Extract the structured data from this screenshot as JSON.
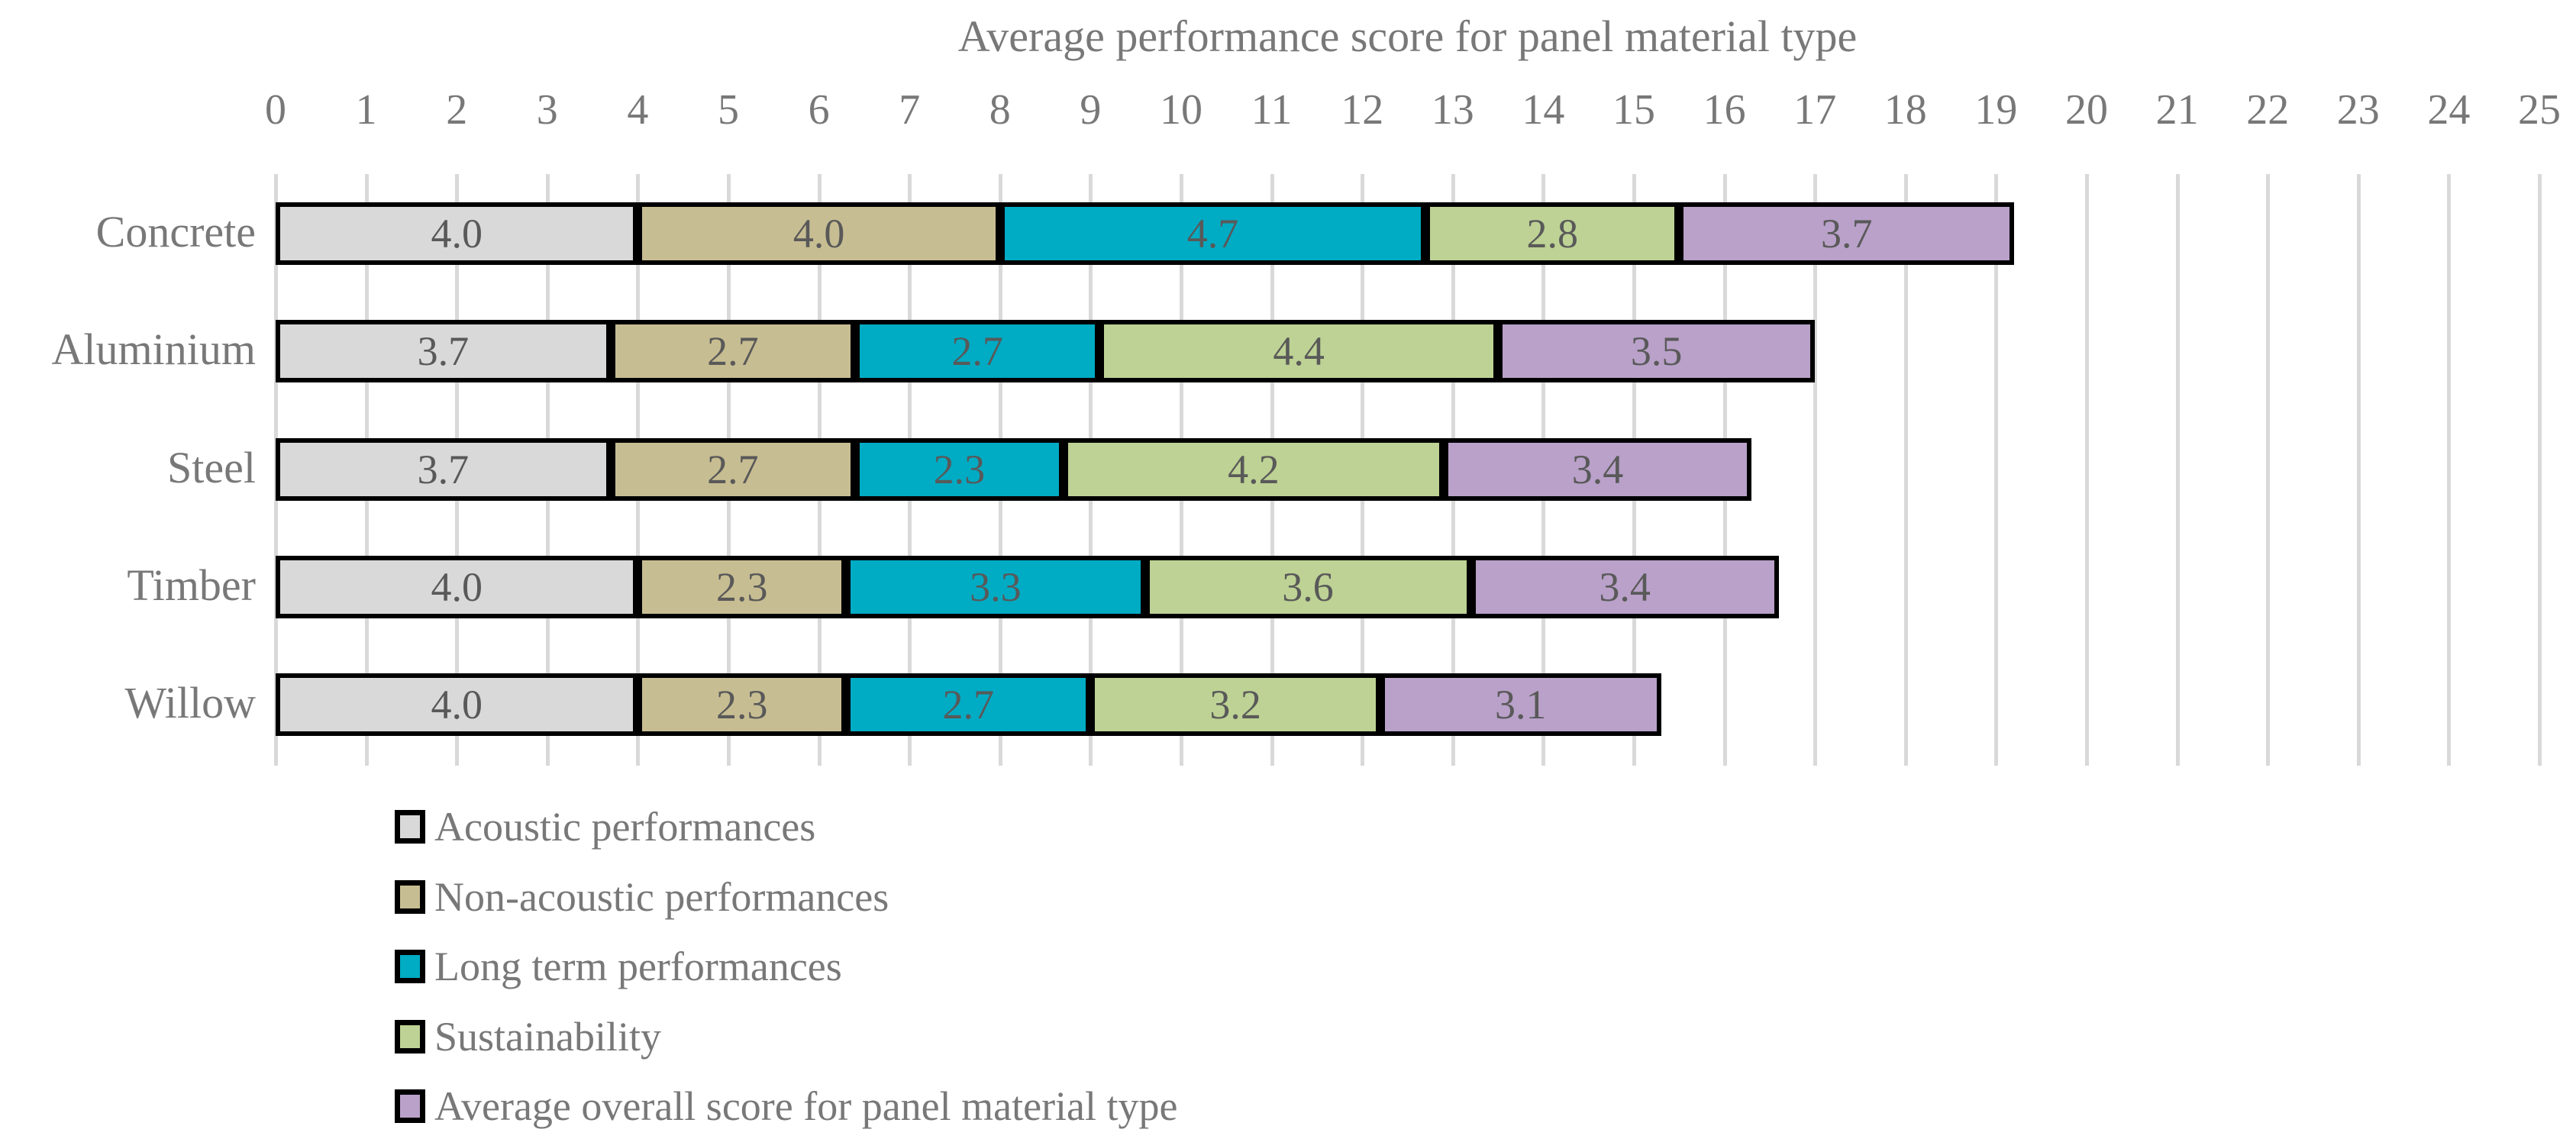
{
  "chart_data": {
    "type": "bar",
    "orientation": "horizontal",
    "stacked": true,
    "title": "Average performance score for panel material type",
    "xlabel": "",
    "ylabel": "",
    "xlim": [
      0,
      25
    ],
    "x_ticks": [
      0,
      1,
      2,
      3,
      4,
      5,
      6,
      7,
      8,
      9,
      10,
      11,
      12,
      13,
      14,
      15,
      16,
      17,
      18,
      19,
      20,
      21,
      22,
      23,
      24,
      25
    ],
    "grid": true,
    "legend_position": "bottom-left",
    "data_labels_shown": true,
    "categories": [
      "Concrete",
      "Aluminium",
      "Steel",
      "Timber",
      "Willow"
    ],
    "series": [
      {
        "name": "Acoustic performances",
        "color": "#d9d9d9",
        "values": [
          4.0,
          3.7,
          3.7,
          4.0,
          4.0
        ]
      },
      {
        "name": "Non-acoustic performances",
        "color": "#c7bd92",
        "values": [
          4.0,
          2.7,
          2.7,
          2.3,
          2.3
        ]
      },
      {
        "name": "Long term performances",
        "color": "#00abc4",
        "values": [
          4.7,
          2.7,
          2.3,
          3.3,
          2.7
        ]
      },
      {
        "name": "Sustainability",
        "color": "#bdd294",
        "values": [
          2.8,
          4.4,
          4.2,
          3.6,
          3.2
        ]
      },
      {
        "name": "Average overall score for panel material type",
        "color": "#b9a1c9",
        "values": [
          3.7,
          3.5,
          3.4,
          3.4,
          3.1
        ]
      }
    ],
    "totals": [
      19.2,
      17.0,
      16.3,
      16.6,
      15.3
    ]
  },
  "colors": {
    "gridline": "#d9d9d9",
    "axis_text": "#787878",
    "data_label_text": "#595959",
    "bar_border": "#000000",
    "background": "#ffffff"
  }
}
